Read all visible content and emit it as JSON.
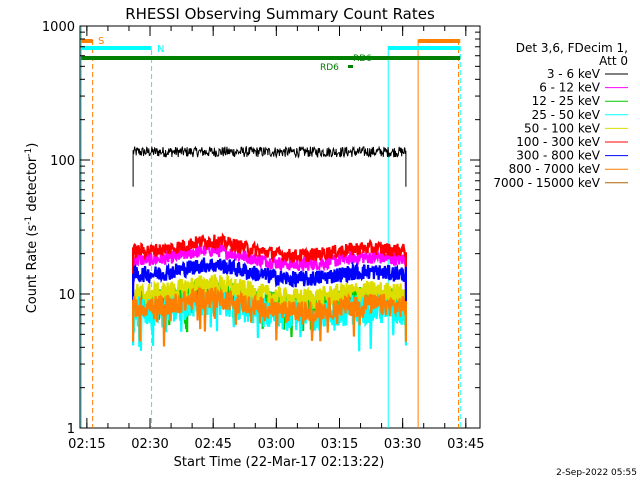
{
  "chart_data": {
    "type": "line",
    "title": "RHESSI Observing Summary Count Rates",
    "xlabel": "Start Time (22-Mar-17 02:13:22)",
    "ylabel_main": "Count Rate (s",
    "ylabel_sup1": "-1",
    "ylabel_mid": " detector",
    "ylabel_sup2": "-1",
    "ylabel_end": ")",
    "yscale": "log",
    "ylim": [
      1,
      1000
    ],
    "xlim_minutes": [
      0,
      95
    ],
    "x_tick_labels": [
      "02:15",
      "02:30",
      "02:45",
      "03:00",
      "03:15",
      "03:30",
      "03:45"
    ],
    "x_tick_minutes": [
      1.63,
      16.63,
      31.63,
      46.63,
      61.63,
      76.63,
      91.63
    ],
    "y_tick_labels": [
      "1",
      "10",
      "100",
      "1000"
    ],
    "y_tick_values": [
      1,
      10,
      100,
      1000
    ],
    "legend": {
      "header1": "Det 3,6, FDecim 1,",
      "header2": "Att 0",
      "placement": "right"
    },
    "series": [
      {
        "name": "3 - 6 keV",
        "color": "#000000",
        "level": 115,
        "noise": 0.04
      },
      {
        "name": "6 - 12 keV",
        "color": "#ff00ff",
        "level": 18,
        "noise": 0.05
      },
      {
        "name": "12 - 25 keV",
        "color": "#00cc00",
        "level": 9,
        "noise": 0.08
      },
      {
        "name": "25 - 50 keV",
        "color": "#00ffff",
        "level": 7.5,
        "noise": 0.12
      },
      {
        "name": "50 - 100 keV",
        "color": "#dddd00",
        "level": 10,
        "noise": 0.08
      },
      {
        "name": "100 - 300 keV",
        "color": "#ff0000",
        "level": 21,
        "noise": 0.05
      },
      {
        "name": "300 - 800 keV",
        "color": "#0000ff",
        "level": 14,
        "noise": 0.06
      },
      {
        "name": "800 - 7000 keV",
        "color": "#ff8000",
        "level": 8,
        "noise": 0.08
      },
      {
        "name": "7000 - 15000 keV",
        "color": "#b06000",
        "level": null,
        "noise": 0
      }
    ],
    "data_start_minute": 12.6,
    "data_end_minute": 77.4,
    "hump_peak_minute": 31,
    "annotations": {
      "saa_label": "S",
      "night_label": "N",
      "rd_label_1": "RD6",
      "rd_label_2": "RD6"
    },
    "attenuator_bar_color": "#008000",
    "saa_color": "#ff8000",
    "night_color": "#00ffff"
  },
  "footer": {
    "timestamp": "2-Sep-2022 05:55"
  }
}
